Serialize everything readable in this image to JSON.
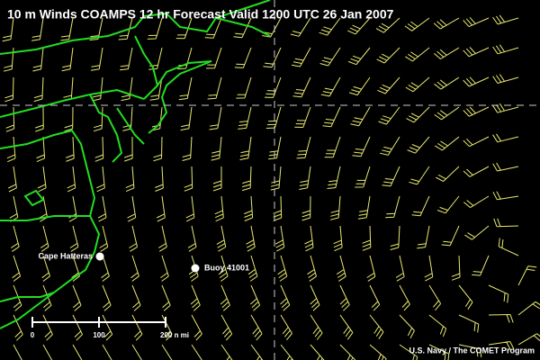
{
  "header": {
    "title": "10 m Winds COAMPS 12 hr Forecast Valid 1200 UTC  26 Jan 2007"
  },
  "places": [
    {
      "label": "Cape Hatteras"
    },
    {
      "label": "Buoy 41001"
    }
  ],
  "scale_bar": {
    "labels": [
      "0",
      "100",
      "200 n mi"
    ]
  },
  "credit": "U.S. Navy / The COMET Program"
}
